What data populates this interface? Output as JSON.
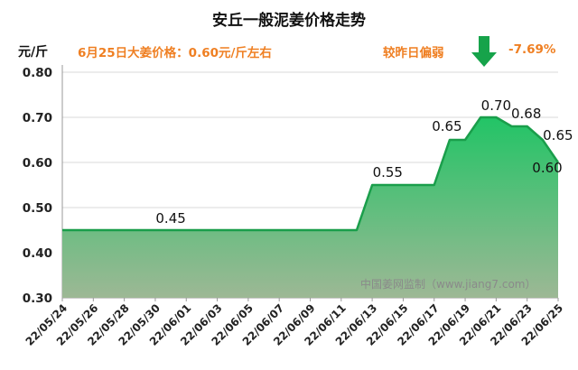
{
  "title": "安丘一般泥姜价格走势",
  "unit": "元/斤",
  "price_note": "6月25日大姜价格：0.60元/斤左右",
  "change_label": "较昨日偏弱",
  "change_pct": "-7.69%",
  "trend_icon": "down-arrow-icon",
  "watermark": "中国姜网监制（www.jiang7.com）",
  "colors": {
    "line": "#1a9e4b",
    "fill_top": "#22c466",
    "fill_bottom": "#9db895",
    "accent": "#ef7f22",
    "arrow": "#16a34a"
  },
  "chart_data": {
    "type": "area",
    "title": "安丘一般泥姜价格走势",
    "ylabel": "元/斤",
    "xlabel": "",
    "ylim": [
      0.3,
      0.8
    ],
    "yticks": [
      "0.30",
      "0.40",
      "0.50",
      "0.60",
      "0.70",
      "0.80"
    ],
    "grid": "horizontal",
    "x": [
      "22/05/24",
      "22/05/25",
      "22/05/26",
      "22/05/27",
      "22/05/28",
      "22/05/29",
      "22/05/30",
      "22/05/31",
      "22/06/01",
      "22/06/02",
      "22/06/03",
      "22/06/04",
      "22/06/05",
      "22/06/06",
      "22/06/07",
      "22/06/08",
      "22/06/09",
      "22/06/10",
      "22/06/11",
      "22/06/12",
      "22/06/13",
      "22/06/14",
      "22/06/15",
      "22/06/16",
      "22/06/17",
      "22/06/18",
      "22/06/19",
      "22/06/20",
      "22/06/21",
      "22/06/22",
      "22/06/23",
      "22/06/24",
      "22/06/25"
    ],
    "xtick_labels": [
      "22/05/24",
      "22/05/26",
      "22/05/28",
      "22/05/30",
      "22/06/01",
      "22/06/03",
      "22/06/05",
      "22/06/07",
      "22/06/09",
      "22/06/11",
      "22/06/13",
      "22/06/15",
      "22/06/17",
      "22/06/19",
      "22/06/21",
      "22/06/23",
      "22/06/25"
    ],
    "values": [
      0.45,
      0.45,
      0.45,
      0.45,
      0.45,
      0.45,
      0.45,
      0.45,
      0.45,
      0.45,
      0.45,
      0.45,
      0.45,
      0.45,
      0.45,
      0.45,
      0.45,
      0.45,
      0.45,
      0.45,
      0.55,
      0.55,
      0.55,
      0.55,
      0.55,
      0.65,
      0.65,
      0.7,
      0.7,
      0.68,
      0.68,
      0.65,
      0.6
    ],
    "annotations": [
      {
        "index": 7,
        "text": "0.45"
      },
      {
        "index": 21,
        "text": "0.55"
      },
      {
        "index": 25,
        "text": "0.65"
      },
      {
        "index": 28,
        "text": "0.70"
      },
      {
        "index": 30,
        "text": "0.68"
      },
      {
        "index": 31,
        "text": "0.65"
      },
      {
        "index": 32,
        "text": "0.60"
      }
    ]
  }
}
